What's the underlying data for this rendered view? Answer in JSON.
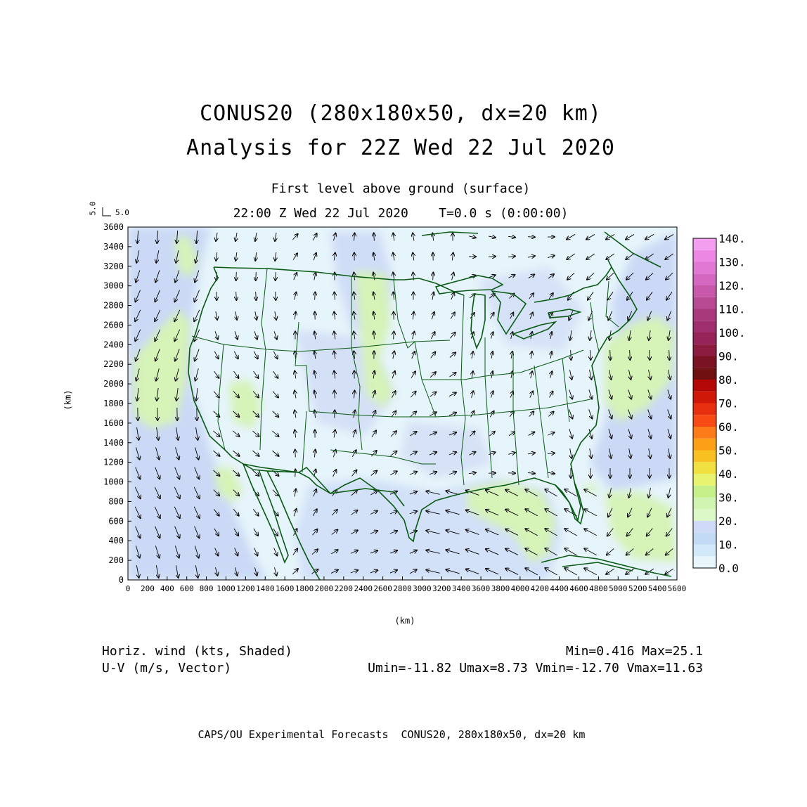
{
  "title_line1": "CONUS20 (280x180x50, dx=20 km)",
  "title_line2": "Analysis for 22Z Wed 22 Jul 2020",
  "subtitle": "First level above ground (surface)",
  "time_line": "22:00 Z Wed 22 Jul 2020    T=0.0 s (0:00:00)",
  "reference_vector": {
    "u_label": "5.0",
    "v_label": "5.0"
  },
  "x_axis": {
    "unit": "(km)",
    "range": [
      0,
      5600
    ],
    "ticks": [
      "0",
      "200",
      "400",
      "600",
      "800",
      "1000",
      "1200",
      "1400",
      "1600",
      "1800",
      "2000",
      "2200",
      "2400",
      "2600",
      "2800",
      "3000",
      "3200",
      "3400",
      "3600",
      "3800",
      "4000",
      "4200",
      "4400",
      "4600",
      "4800",
      "5000",
      "5200",
      "5400",
      "5600"
    ]
  },
  "y_axis": {
    "unit": "(km)",
    "range": [
      0,
      3600
    ],
    "ticks": [
      "0",
      "200",
      "400",
      "600",
      "800",
      "1000",
      "1200",
      "1400",
      "1600",
      "1800",
      "2000",
      "2200",
      "2400",
      "2600",
      "2800",
      "3000",
      "3200",
      "3400",
      "3600"
    ]
  },
  "colorbar": {
    "labels": [
      "0.0",
      "10.",
      "20.",
      "30.",
      "40.",
      "50.",
      "60.",
      "70.",
      "80.",
      "90.",
      "100.",
      "110.",
      "120.",
      "130.",
      "140."
    ],
    "colors": [
      "#e8f6fc",
      "#d2e9f9",
      "#c3daf5",
      "#cfd9f8",
      "#dcf8c8",
      "#d0f5b0",
      "#c8f08a",
      "#e8f470",
      "#f0e040",
      "#f8c020",
      "#fca018",
      "#fe7b1a",
      "#f84a14",
      "#e83010",
      "#d01808",
      "#b40808",
      "#701010",
      "#7a1424",
      "#8c1c40",
      "#962458",
      "#9e2e6c",
      "#a83a7c",
      "#b84a94",
      "#c858aa",
      "#d468c0",
      "#e078d4",
      "#ec88e4",
      "#f49ef0"
    ]
  },
  "footer": {
    "field1": "Horiz. wind (kts, Shaded)",
    "field2": "U-V (m/s, Vector)",
    "minmax": "Min=0.416 Max=25.1",
    "uv_stats": "Umin=-11.82 Umax=8.73 Vmin=-12.70 Vmax=11.63"
  },
  "credit": "CAPS/OU Experimental Forecasts  CONUS20, 280x180x50, dx=20 km",
  "colors": {
    "map_lines": "#0a5a14",
    "frame": "#000000"
  }
}
